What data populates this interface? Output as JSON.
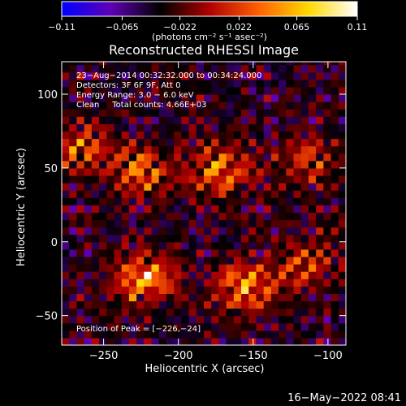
{
  "chart_data": {
    "type": "heatmap",
    "title": "Reconstructed RHESSI Image",
    "xlabel": "Heliocentric X (arcsec)",
    "ylabel": "Heliocentric Y (arcsec)",
    "xlim": [
      -278,
      -88
    ],
    "ylim": [
      -70,
      122
    ],
    "xticks": [
      -250,
      -200,
      -150,
      -100
    ],
    "xtick_labels": [
      "−250",
      "−200",
      "−150",
      "−100"
    ],
    "yticks": [
      -50,
      0,
      50,
      100
    ],
    "ytick_labels": [
      "−50",
      "0",
      "50",
      "100"
    ],
    "colorbar": {
      "min": -0.11,
      "max": 0.11,
      "ticks": [
        -0.11,
        -0.065,
        -0.022,
        0.022,
        0.065,
        0.11
      ],
      "tick_labels": [
        "−0.11",
        "−0.065",
        "−0.022",
        "0.022",
        "0.065",
        "0.11"
      ],
      "unit_label": "(photons cm⁻² s⁻¹ asec⁻²)",
      "colors": [
        "#0000ff",
        "#5f00b4",
        "#000000",
        "#b00000",
        "#ff6000",
        "#ffd800",
        "#ffffff"
      ]
    },
    "annotations": [
      "23−Aug−2014 00:32:32.000 to 00:34:24.000",
      "Detectors: 3F 6F 9F, Att 0",
      "Energy Range: 3.0 − 6.0 keV",
      "Clean     Total counts: 4.66E+03"
    ],
    "peak_label": "Position of Peak = [−226,−24]",
    "peak": [
      -226,
      -24
    ],
    "sources": [
      {
        "x": -265,
        "y": 63,
        "peak": 0.07
      },
      {
        "x": -225,
        "y": 48,
        "peak": 0.08
      },
      {
        "x": -172,
        "y": 48,
        "peak": 0.09
      },
      {
        "x": -222,
        "y": -24,
        "peak": 0.11
      },
      {
        "x": -155,
        "y": -30,
        "peak": 0.1
      },
      {
        "x": -115,
        "y": -15,
        "peak": 0.06
      },
      {
        "x": -115,
        "y": 55,
        "peak": 0.06
      }
    ]
  },
  "footer": {
    "date": "16−May−2022 08:41"
  }
}
